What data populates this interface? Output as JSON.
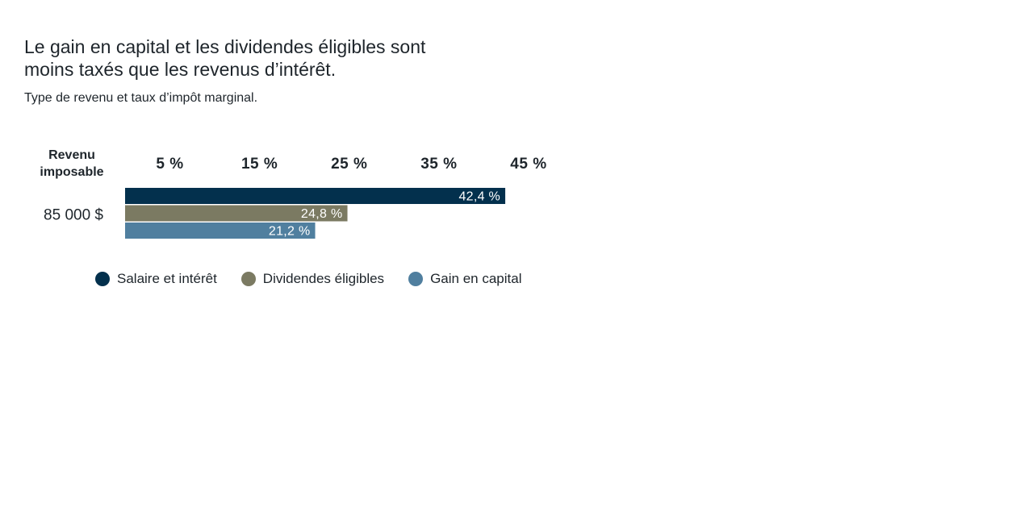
{
  "title": "Le gain en capital et les dividendes éligibles sont moins taxés que les revenus d’intérêt.",
  "subtitle": "Type de revenu et taux d’impôt marginal.",
  "chart_data": {
    "type": "bar",
    "orientation": "horizontal",
    "row_header": [
      "Revenu",
      "imposable"
    ],
    "categories": [
      "85 000 $"
    ],
    "x_ticks": [
      "5 %",
      "15 %",
      "25 %",
      "35 %",
      "45 %"
    ],
    "x_tick_values": [
      5,
      15,
      25,
      35,
      45
    ],
    "xlim": [
      0,
      45
    ],
    "grid": false,
    "legend_position": "bottom",
    "series": [
      {
        "name": "Salaire et intérêt",
        "values": [
          42.4
        ],
        "label": "42,4 %",
        "color": "#03304d"
      },
      {
        "name": "Dividendes éligibles",
        "values": [
          24.8
        ],
        "label": "24,8 %",
        "color": "#7b7a62"
      },
      {
        "name": "Gain en capital",
        "values": [
          21.2
        ],
        "label": "21,2 %",
        "color": "#507f9f"
      }
    ]
  }
}
